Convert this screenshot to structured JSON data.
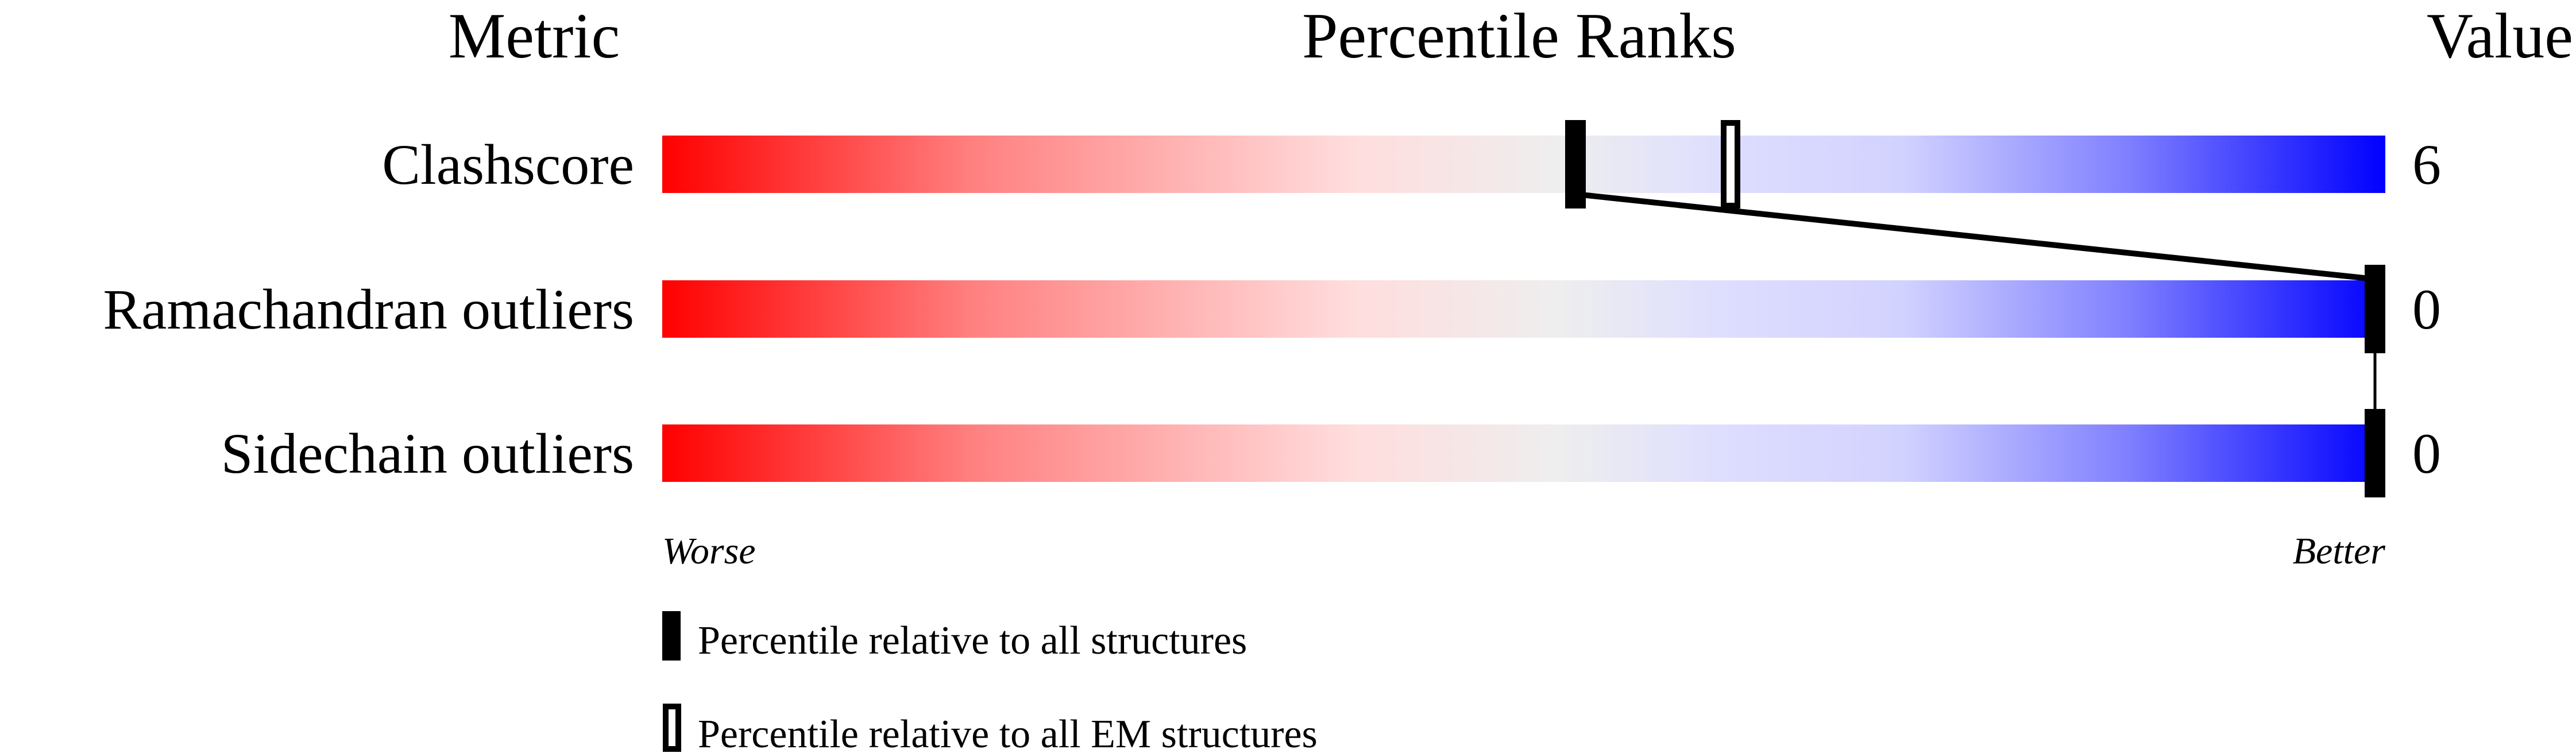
{
  "headers": {
    "metric": "Metric",
    "percentile": "Percentile Ranks",
    "value": "Value"
  },
  "chart_data": {
    "type": "bar",
    "xlim": [
      0,
      100
    ],
    "scale_labels": {
      "low": "Worse",
      "high": "Better"
    },
    "colors": {
      "worse": "#ff0000",
      "neutral": "#eeeeee",
      "better": "#0000ff",
      "marker": "#000000"
    },
    "metrics": [
      {
        "name": "Clashscore",
        "value": "6",
        "percentile_all": 53,
        "percentile_em": 62
      },
      {
        "name": "Ramachandran outliers",
        "value": "0",
        "percentile_all": 100
      },
      {
        "name": "Sidechain outliers",
        "value": "0",
        "percentile_all": 100
      }
    ],
    "legend": [
      {
        "style": "filled",
        "label": "Percentile relative to all structures"
      },
      {
        "style": "hollow",
        "label": "Percentile relative to all EM structures"
      }
    ]
  }
}
